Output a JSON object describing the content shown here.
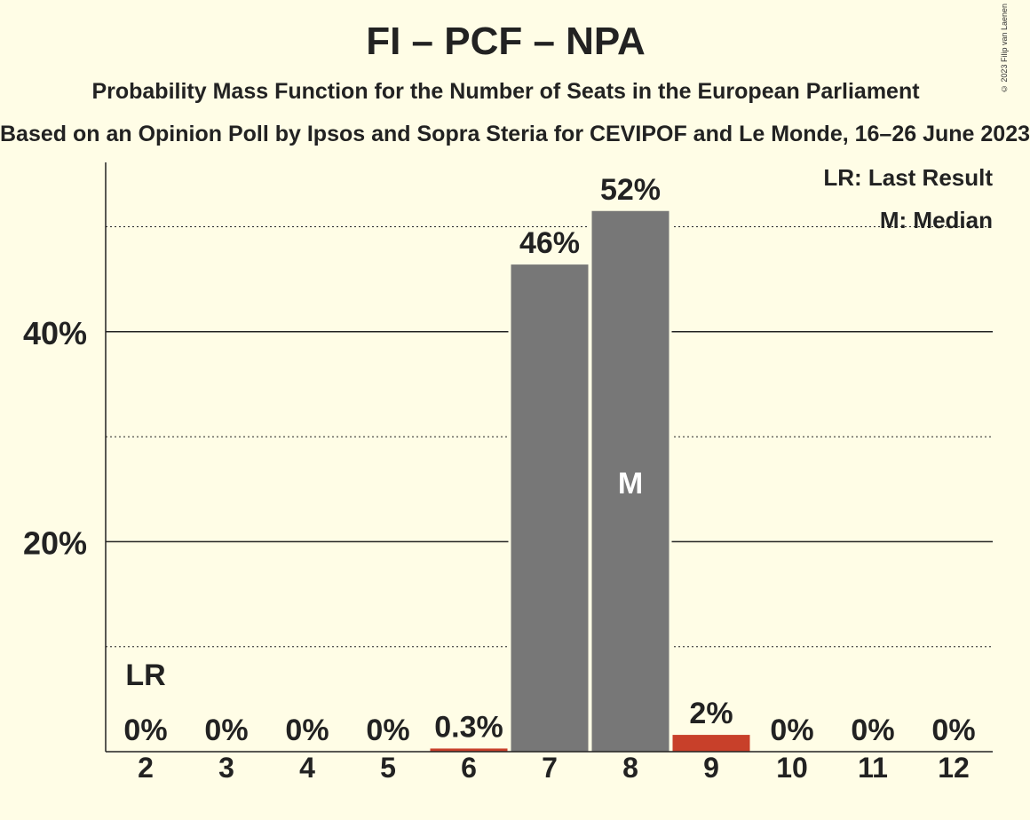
{
  "title": "FI – PCF – NPA",
  "subtitle": "Probability Mass Function for the Number of Seats in the European Parliament",
  "source": "Based on an Opinion Poll by Ipsos and Sopra Steria for CEVIPOF and Le Monde, 16–26 June 2023",
  "copyright": "© 2023 Filip van Laenen",
  "legend": {
    "last_result": "LR: Last Result",
    "median": "M: Median"
  },
  "colors": {
    "background": "#fffde6",
    "bar_default": "#777777",
    "bar_highlight": "#c8402a",
    "text": "#222222"
  },
  "chart_data": {
    "type": "bar",
    "title": "FI – PCF – NPA",
    "subtitle": "Probability Mass Function for the Number of Seats in the European Parliament",
    "categories": [
      "2",
      "3",
      "4",
      "5",
      "6",
      "7",
      "8",
      "9",
      "10",
      "11",
      "12"
    ],
    "values": [
      0,
      0,
      0,
      0,
      0.3,
      46.4,
      51.5,
      1.6,
      0,
      0,
      0
    ],
    "value_labels": [
      "0%",
      "0%",
      "0%",
      "0%",
      "0.3%",
      "46%",
      "52%",
      "2%",
      "0%",
      "0%",
      "0%"
    ],
    "bar_colors": [
      "#777777",
      "#777777",
      "#777777",
      "#777777",
      "#c8402a",
      "#777777",
      "#777777",
      "#c8402a",
      "#777777",
      "#777777",
      "#777777"
    ],
    "ylim": [
      0,
      56
    ],
    "yticks_major": [
      20,
      40
    ],
    "ytick_labels": [
      "20%",
      "40%"
    ],
    "yticks_minor": [
      10,
      30,
      50
    ],
    "last_result_category": "2",
    "last_result_label": "LR",
    "median_category": "8",
    "median_label": "M",
    "legend_position": "top-right"
  }
}
